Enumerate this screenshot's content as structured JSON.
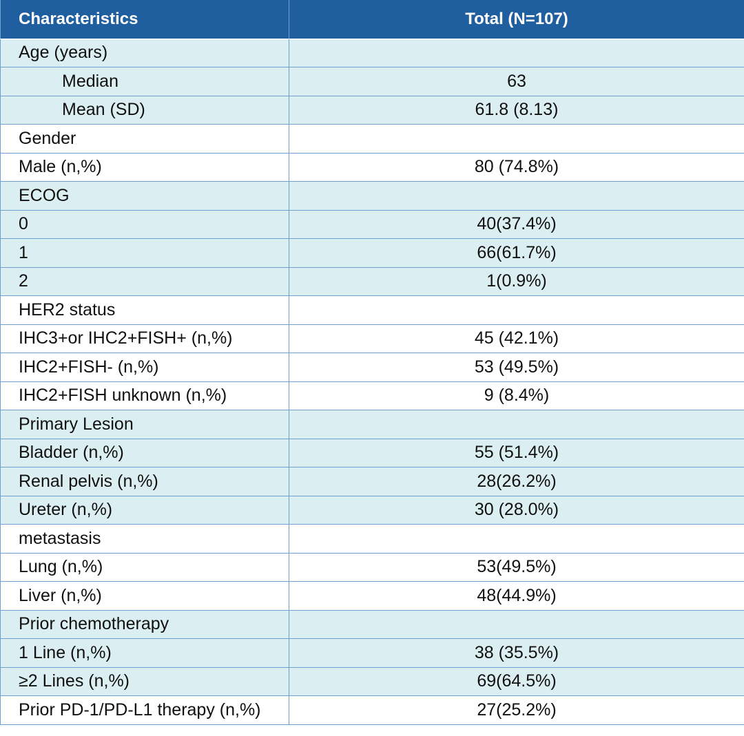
{
  "table": {
    "headers": [
      "Characteristics",
      "Total (N=107)"
    ],
    "rows": [
      {
        "label": "Age (years)",
        "value": "",
        "indent": false,
        "shade": true
      },
      {
        "label": "Median",
        "value": "63",
        "indent": true,
        "shade": true
      },
      {
        "label": "Mean (SD)",
        "value": "61.8 (8.13)",
        "indent": true,
        "shade": true
      },
      {
        "label": "Gender",
        "value": "",
        "indent": false,
        "shade": false
      },
      {
        "label": "Male (n,%)",
        "value": "80 (74.8%)",
        "indent": false,
        "shade": false
      },
      {
        "label": "ECOG",
        "value": "",
        "indent": false,
        "shade": true
      },
      {
        "label": "0",
        "value": "40(37.4%)",
        "indent": false,
        "shade": true
      },
      {
        "label": "1",
        "value": "66(61.7%)",
        "indent": false,
        "shade": true
      },
      {
        "label": "2",
        "value": "1(0.9%)",
        "indent": false,
        "shade": true
      },
      {
        "label": "HER2 status",
        "value": "",
        "indent": false,
        "shade": false
      },
      {
        "label": "IHC3+or IHC2+FISH+  (n,%)",
        "value": "45 (42.1%)",
        "indent": false,
        "shade": false
      },
      {
        "label": "IHC2+FISH- (n,%)",
        "value": "53 (49.5%)",
        "indent": false,
        "shade": false
      },
      {
        "label": "IHC2+FISH unknown (n,%)",
        "value": "9 (8.4%)",
        "indent": false,
        "shade": false
      },
      {
        "label": "Primary Lesion",
        "value": "",
        "indent": false,
        "shade": true
      },
      {
        "label": "Bladder (n,%)",
        "value": "55 (51.4%)",
        "indent": false,
        "shade": true
      },
      {
        "label": "Renal pelvis (n,%)",
        "value": "28(26.2%)",
        "indent": false,
        "shade": true
      },
      {
        "label": "Ureter (n,%)",
        "value": "30 (28.0%)",
        "indent": false,
        "shade": true
      },
      {
        "label": "metastasis",
        "value": "",
        "indent": false,
        "shade": false
      },
      {
        "label": "Lung (n,%)",
        "value": "53(49.5%)",
        "indent": false,
        "shade": false
      },
      {
        "label": "Liver (n,%)",
        "value": "48(44.9%)",
        "indent": false,
        "shade": false
      },
      {
        "label": "Prior chemotherapy",
        "value": "",
        "indent": false,
        "shade": true
      },
      {
        "label": "1 Line (n,%)",
        "value": "38 (35.5%)",
        "indent": false,
        "shade": true
      },
      {
        "label": "≥2 Lines (n,%)",
        "value": "69(64.5%)",
        "indent": false,
        "shade": true
      },
      {
        "label": "Prior PD-1/PD-L1 therapy (n,%)",
        "value": "27(25.2%)",
        "indent": false,
        "shade": false
      }
    ]
  }
}
